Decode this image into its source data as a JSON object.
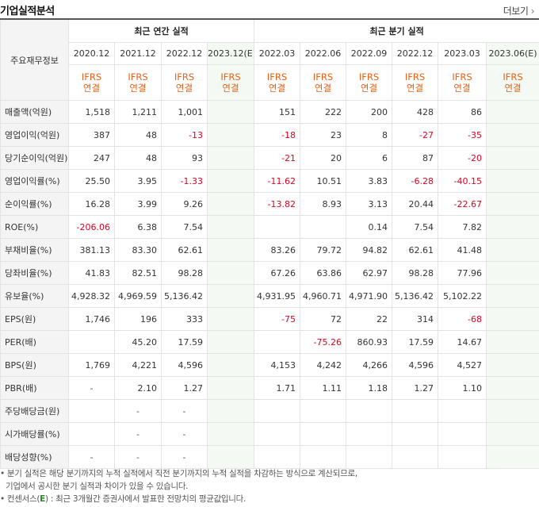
{
  "header": {
    "title": "기업실적분석",
    "more_label": "더보기",
    "more_arrow": "›"
  },
  "table": {
    "corner_label": "주요재무정보",
    "groups": [
      "최근 연간 실적",
      "최근 분기 실적"
    ],
    "periods": [
      "2020.12",
      "2021.12",
      "2022.12",
      "2023.12(E)",
      "2022.03",
      "2022.06",
      "2022.09",
      "2022.12",
      "2023.03",
      "2023.06(E)"
    ],
    "ifrs_label": "IFRS",
    "basis_label": "연결",
    "rows": [
      {
        "label": "매출액(억원)",
        "values": [
          "1,518",
          "1,211",
          "1,001",
          "",
          "151",
          "222",
          "200",
          "428",
          "86",
          ""
        ]
      },
      {
        "label": "영업이익(억원)",
        "values": [
          "387",
          "48",
          "-13",
          "",
          "-18",
          "23",
          "8",
          "-27",
          "-35",
          ""
        ]
      },
      {
        "label": "당기순이익(억원)",
        "values": [
          "247",
          "48",
          "93",
          "",
          "-21",
          "20",
          "6",
          "87",
          "-20",
          ""
        ]
      },
      {
        "label": "영업이익률(%)",
        "values": [
          "25.50",
          "3.95",
          "-1.33",
          "",
          "-11.62",
          "10.51",
          "3.83",
          "-6.28",
          "-40.15",
          ""
        ]
      },
      {
        "label": "순이익률(%)",
        "values": [
          "16.28",
          "3.99",
          "9.26",
          "",
          "-13.82",
          "8.93",
          "3.13",
          "20.44",
          "-22.67",
          ""
        ]
      },
      {
        "label": "ROE(%)",
        "values": [
          "-206.06",
          "6.38",
          "7.54",
          "",
          "",
          "",
          "0.14",
          "7.54",
          "7.82",
          ""
        ]
      },
      {
        "label": "부채비율(%)",
        "values": [
          "381.13",
          "83.30",
          "62.61",
          "",
          "83.26",
          "79.72",
          "94.82",
          "62.61",
          "41.48",
          ""
        ]
      },
      {
        "label": "당좌비율(%)",
        "values": [
          "41.83",
          "82.51",
          "98.28",
          "",
          "67.26",
          "63.86",
          "62.97",
          "98.28",
          "77.96",
          ""
        ]
      },
      {
        "label": "유보율(%)",
        "values": [
          "4,928.32",
          "4,969.59",
          "5,136.42",
          "",
          "4,931.95",
          "4,960.71",
          "4,971.90",
          "5,136.42",
          "5,102.22",
          ""
        ]
      },
      {
        "label": "EPS(원)",
        "values": [
          "1,746",
          "196",
          "333",
          "",
          "-75",
          "72",
          "22",
          "314",
          "-68",
          ""
        ]
      },
      {
        "label": "PER(배)",
        "values": [
          "",
          "45.20",
          "17.59",
          "",
          "",
          "-75.26",
          "860.93",
          "17.59",
          "14.67",
          ""
        ]
      },
      {
        "label": "BPS(원)",
        "values": [
          "1,769",
          "4,221",
          "4,596",
          "",
          "4,153",
          "4,242",
          "4,266",
          "4,596",
          "4,527",
          ""
        ]
      },
      {
        "label": "PBR(배)",
        "values": [
          "-",
          "2.10",
          "1.27",
          "",
          "1.71",
          "1.11",
          "1.18",
          "1.27",
          "1.10",
          ""
        ]
      },
      {
        "label": "주당배당금(원)",
        "values": [
          "",
          "-",
          "-",
          "",
          "",
          "",
          "",
          "",
          "",
          ""
        ]
      },
      {
        "label": "시가배당률(%)",
        "values": [
          "",
          "-",
          "-",
          "",
          "",
          "",
          "",
          "",
          "",
          ""
        ]
      },
      {
        "label": "배당성향(%)",
        "values": [
          "-",
          "-",
          "-",
          "",
          "",
          "",
          "",
          "",
          "",
          ""
        ]
      }
    ]
  },
  "notes": {
    "line1": "• 분기 실적은 해당 분기까지의 누적 실적에서 직전 분기까지의 누적 실적을 차감하는 방식으로 계산되므로,",
    "line2": "기업에서 공시한 분기 실적과 차이가 있을 수 있습니다.",
    "line3_prefix": "• 컨센서스(",
    "line3_e": "E",
    "line3_suffix": ") : 최근 3개월간 증권사에서 발표한 전망치의 평균값입니다."
  },
  "colors": {
    "negative": "#e0001e",
    "ifrs": "#e86117",
    "estimate_bg": "#f4faf3"
  }
}
